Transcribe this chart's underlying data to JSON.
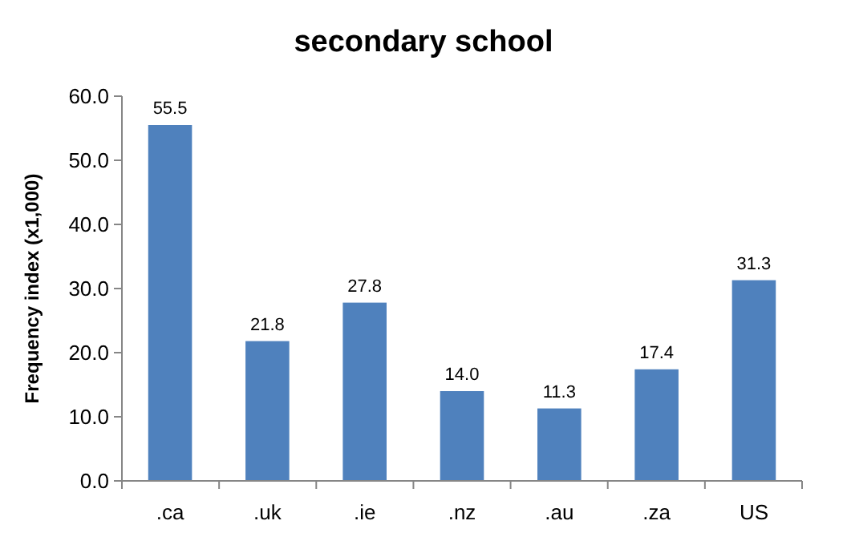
{
  "chart_data": {
    "type": "bar",
    "title": "secondary school",
    "ylabel": "Frequency index (x1,000)",
    "categories": [
      ".ca",
      ".uk",
      ".ie",
      ".nz",
      ".au",
      ".za",
      "US"
    ],
    "values": [
      55.5,
      21.8,
      27.8,
      14.0,
      11.3,
      17.4,
      31.3
    ],
    "value_labels": [
      "55.5",
      "21.8",
      "27.8",
      "14.0",
      "11.3",
      "17.4",
      "31.3"
    ],
    "color": "#4f81bd",
    "ylim": [
      0,
      60
    ],
    "yticks": [
      {
        "value": 0,
        "label": "0.0"
      },
      {
        "value": 10,
        "label": "10.0"
      },
      {
        "value": 20,
        "label": "20.0"
      },
      {
        "value": 30,
        "label": "30.0"
      },
      {
        "value": 40,
        "label": "40.0"
      },
      {
        "value": 50,
        "label": "50.0"
      },
      {
        "value": 60,
        "label": "60.0"
      }
    ],
    "grid": false
  }
}
